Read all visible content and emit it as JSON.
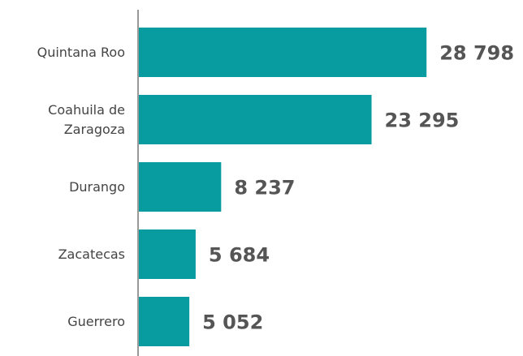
{
  "chart_data": {
    "type": "bar",
    "orientation": "horizontal",
    "categories": [
      "Quintana Roo",
      "Coahuila de Zaragoza",
      "Durango",
      "Zacatecas",
      "Guerrero"
    ],
    "values": [
      28798,
      23295,
      8237,
      5684,
      5052
    ],
    "value_labels": [
      "28 798",
      "23 295",
      "8 237",
      "5 684",
      "5 052"
    ],
    "color": "#089ba0"
  }
}
